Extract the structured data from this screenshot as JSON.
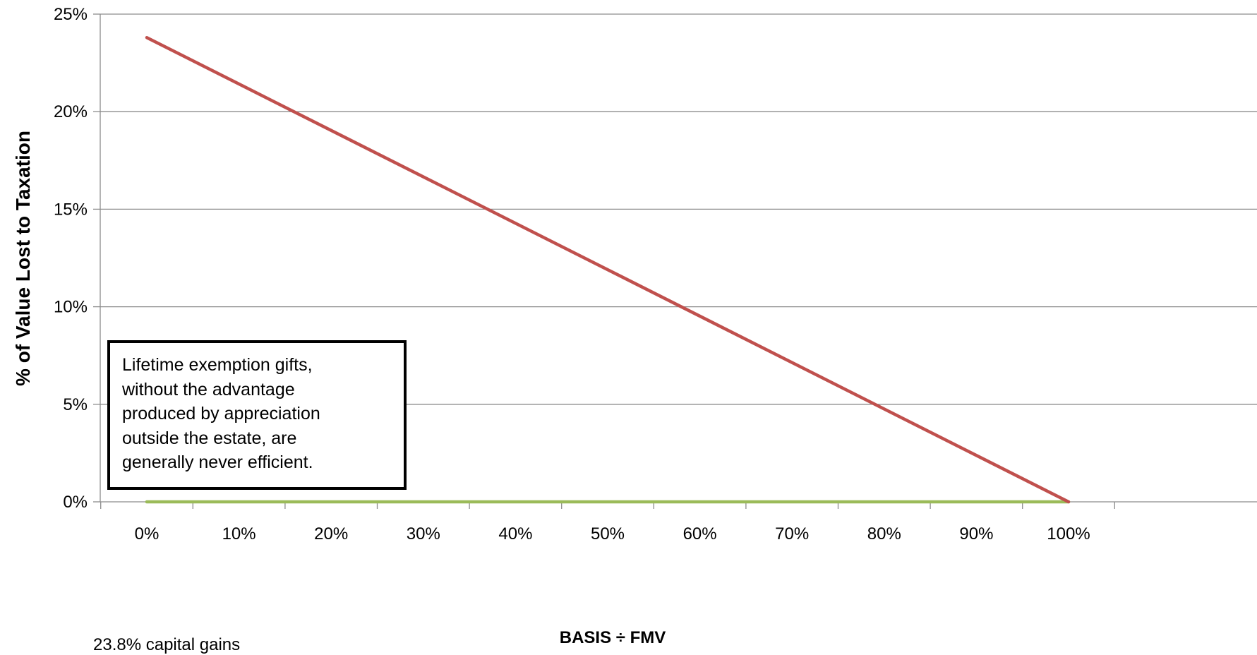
{
  "chart_data": {
    "type": "line",
    "xlabel": "BASIS ÷ FMV",
    "ylabel": "% of Value Lost to Taxation",
    "x_categories": [
      "0%",
      "10%",
      "20%",
      "30%",
      "40%",
      "50%",
      "60%",
      "70%",
      "80%",
      "90%",
      "100%"
    ],
    "x_range": [
      0,
      100
    ],
    "ylim": [
      0,
      25
    ],
    "y_ticks": [
      "0%",
      "5%",
      "10%",
      "15%",
      "20%",
      "25%"
    ],
    "y_tick_values": [
      0,
      5,
      10,
      15,
      20,
      25
    ],
    "grid": "horizontal",
    "series": [
      {
        "color": "#c0504d",
        "x": [
          0,
          100
        ],
        "y": [
          23.8,
          0
        ]
      },
      {
        "color": "#9bbb59",
        "x": [
          0,
          100
        ],
        "y": [
          0,
          0
        ]
      }
    ],
    "annotation": {
      "lines": [
        "Lifetime exemption gifts,",
        "without the advantage",
        "produced by appreciation",
        "outside the estate, are",
        "generally never efficient."
      ]
    },
    "footnote": "23.8% capital gains"
  }
}
